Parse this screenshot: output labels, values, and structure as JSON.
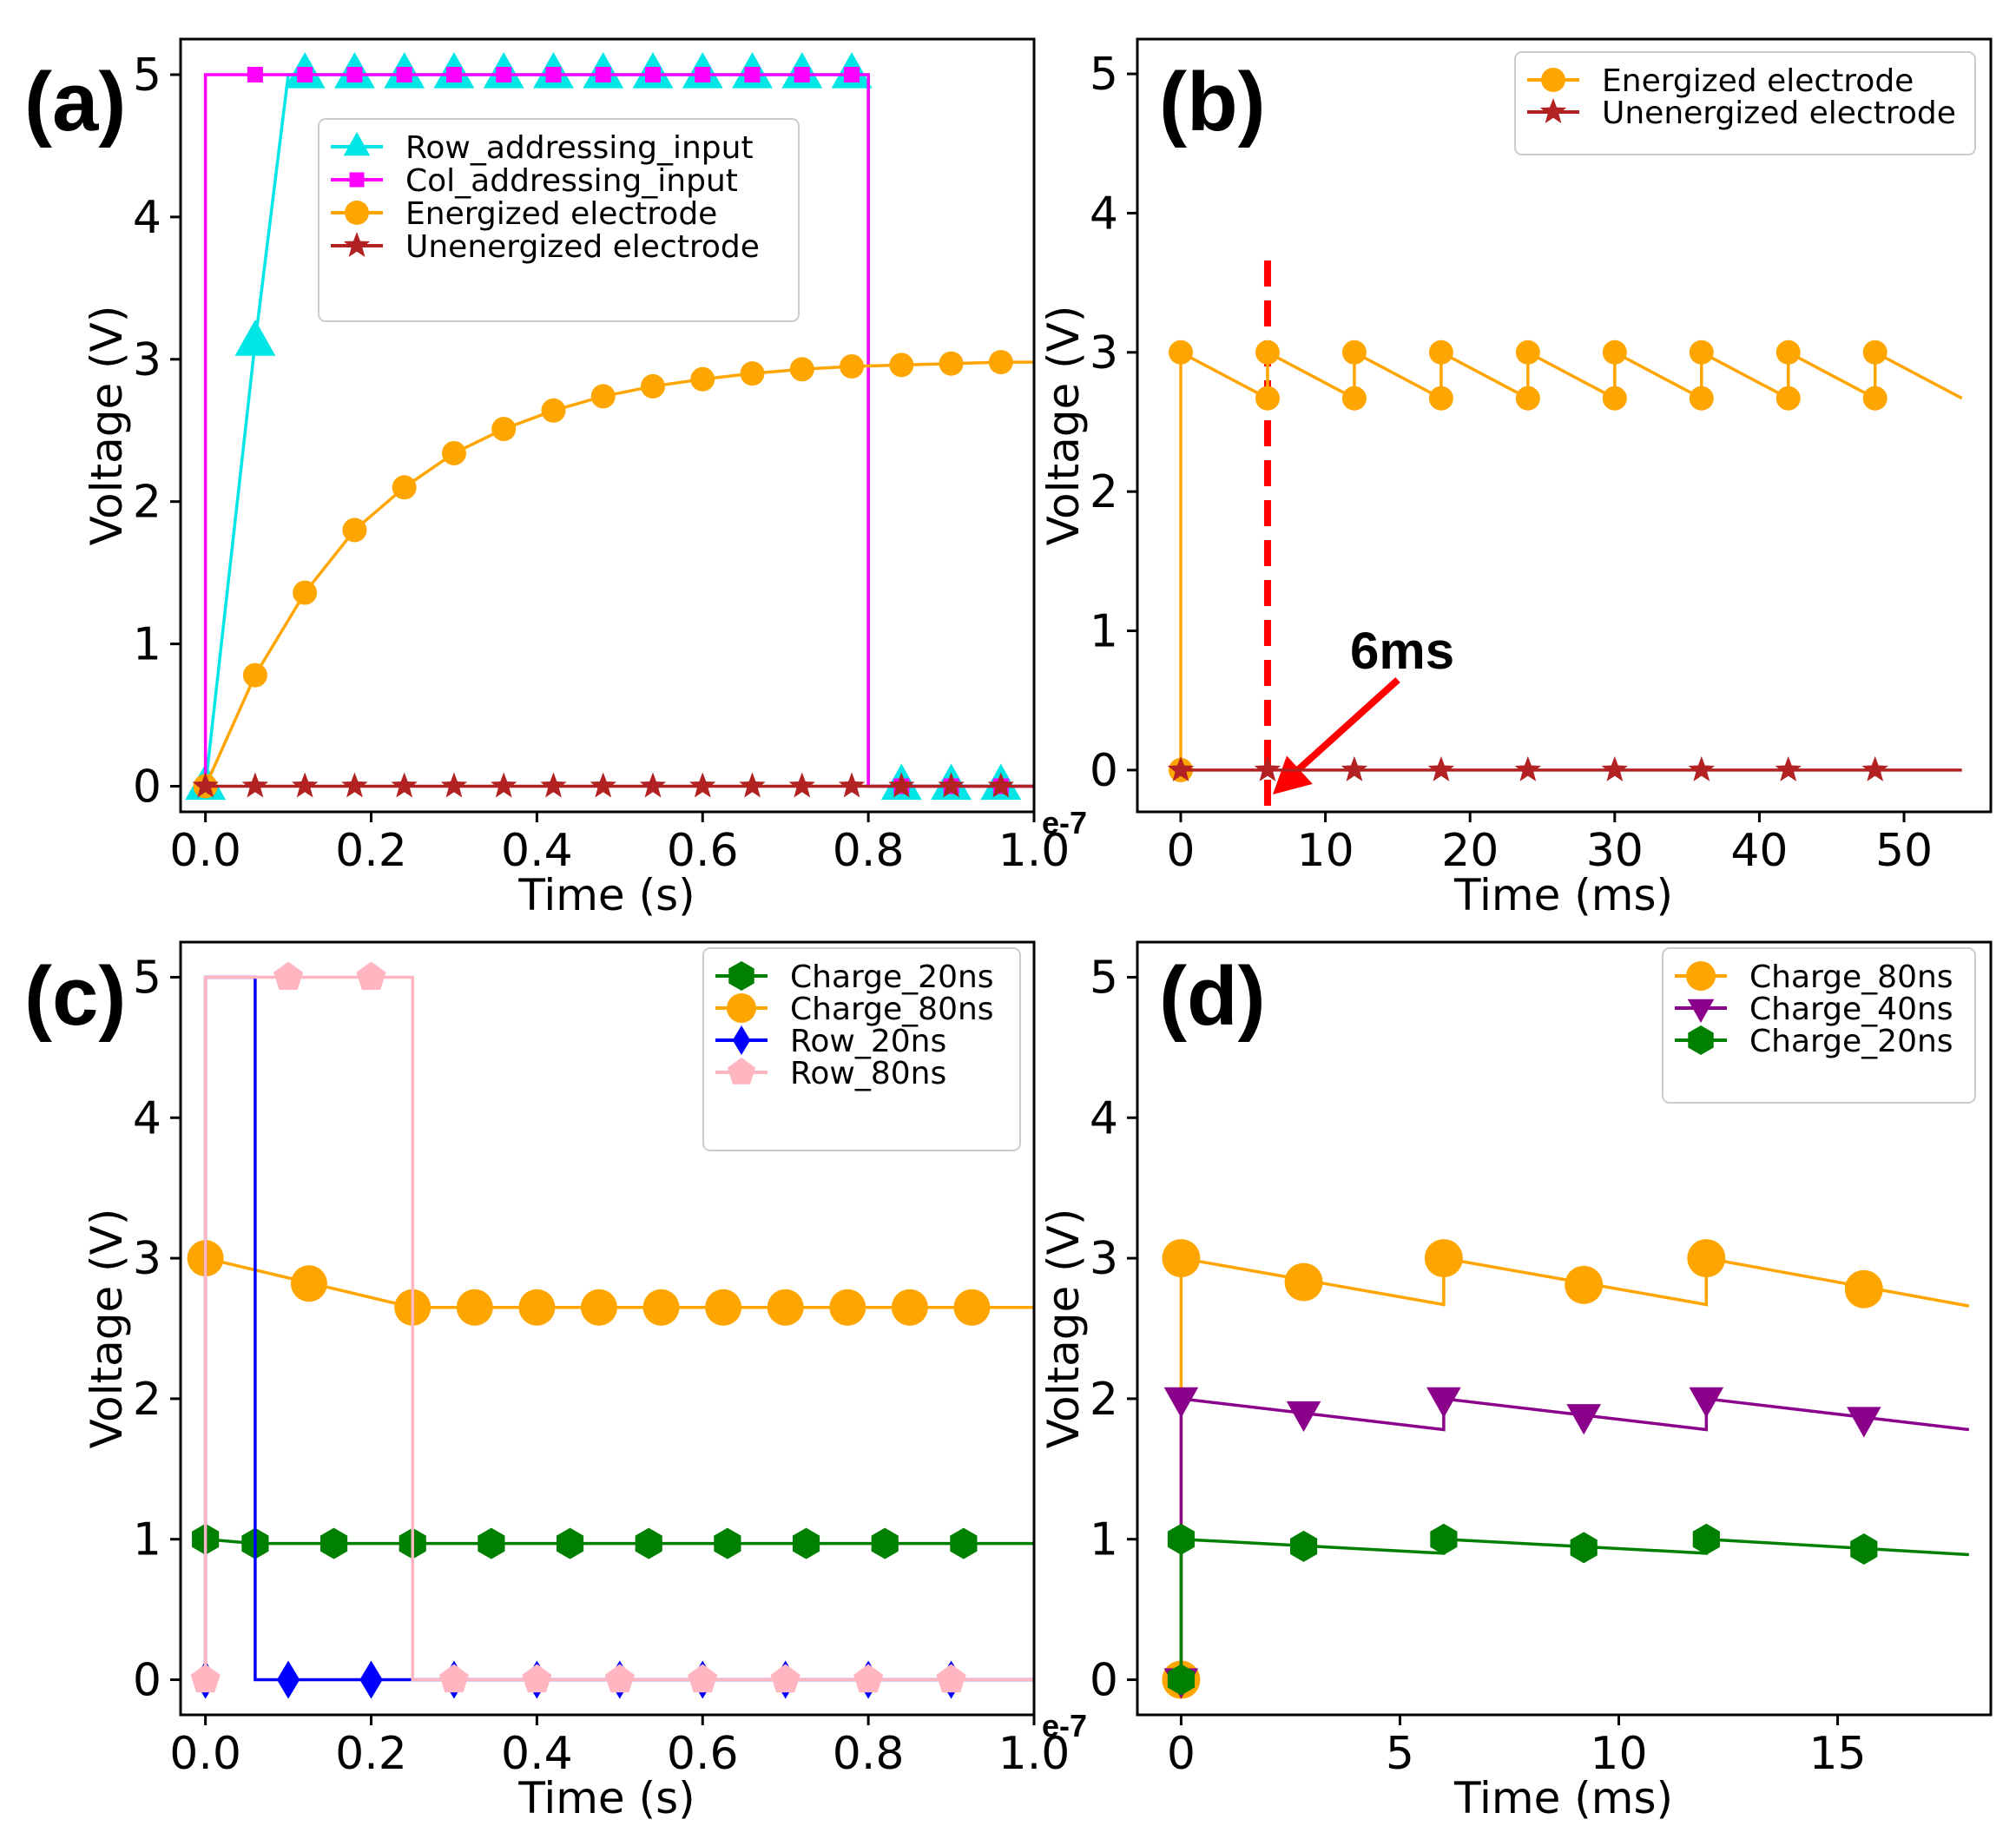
{
  "chart_data": [
    {
      "panel": "(a)",
      "type": "line",
      "xlabel": "Time (s)",
      "ylabel": "Voltage (V)",
      "x_offset_label": "e-7",
      "xlim": [
        -0.03,
        1.0
      ],
      "ylim": [
        -0.18,
        5.25
      ],
      "xticks": [
        0.0,
        0.2,
        0.4,
        0.6,
        0.8,
        1.0
      ],
      "xtick_labels": [
        "0.0",
        "0.2",
        "0.4",
        "0.6",
        "0.8",
        "1.0"
      ],
      "yticks": [
        0,
        1,
        2,
        3,
        4,
        5
      ],
      "ytick_labels": [
        "0",
        "1",
        "2",
        "3",
        "4",
        "5"
      ],
      "legend_position": "upper-center",
      "series": [
        {
          "name": "Row_addressing_input",
          "color": "#00e5e5",
          "marker": "triangle-up",
          "marker_size": 26,
          "x": [
            0.0,
            0.06,
            0.1,
            0.8,
            0.8,
            1.0
          ],
          "y": [
            0,
            3.12,
            5,
            5,
            0,
            0
          ],
          "markers_x": [
            0.0,
            0.06,
            0.12,
            0.18,
            0.24,
            0.3,
            0.36,
            0.42,
            0.48,
            0.54,
            0.6,
            0.66,
            0.72,
            0.78,
            0.84,
            0.9,
            0.96
          ],
          "markers_y": [
            0,
            3.12,
            5,
            5,
            5,
            5,
            5,
            5,
            5,
            5,
            5,
            5,
            5,
            5,
            0,
            0,
            0
          ]
        },
        {
          "name": "Col_addressing_input",
          "color": "#ff00ff",
          "marker": "square",
          "marker_size": 18,
          "x": [
            0.0,
            0.0,
            0.8,
            0.8,
            1.0
          ],
          "y": [
            0,
            5,
            5,
            0,
            0
          ],
          "markers_x": [
            0.0,
            0.06,
            0.12,
            0.18,
            0.24,
            0.3,
            0.36,
            0.42,
            0.48,
            0.54,
            0.6,
            0.66,
            0.72,
            0.78,
            0.84,
            0.9,
            0.96
          ],
          "markers_y": [
            0,
            5,
            5,
            5,
            5,
            5,
            5,
            5,
            5,
            5,
            5,
            5,
            5,
            5,
            0,
            0,
            0
          ]
        },
        {
          "name": "Energized electrode",
          "color": "#ffa500",
          "marker": "circle",
          "marker_size": 14,
          "x": [
            0.0,
            0.06,
            0.12,
            0.18,
            0.24,
            0.3,
            0.36,
            0.42,
            0.48,
            0.54,
            0.6,
            0.66,
            0.72,
            0.78,
            0.84,
            0.9,
            0.96,
            1.0
          ],
          "y": [
            0,
            0.78,
            1.36,
            1.8,
            2.1,
            2.34,
            2.51,
            2.64,
            2.74,
            2.81,
            2.86,
            2.9,
            2.93,
            2.95,
            2.96,
            2.97,
            2.98,
            2.98
          ],
          "markers_x": [
            0.0,
            0.06,
            0.12,
            0.18,
            0.24,
            0.3,
            0.36,
            0.42,
            0.48,
            0.54,
            0.6,
            0.66,
            0.72,
            0.78,
            0.84,
            0.9,
            0.96
          ],
          "markers_y": [
            0,
            0.78,
            1.36,
            1.8,
            2.1,
            2.34,
            2.51,
            2.64,
            2.74,
            2.81,
            2.86,
            2.9,
            2.93,
            2.95,
            2.96,
            2.97,
            2.98
          ]
        },
        {
          "name": "Unenergized electrode",
          "color": "#b22222",
          "marker": "star",
          "marker_size": 16,
          "x": [
            0.0,
            1.0
          ],
          "y": [
            0,
            0
          ],
          "markers_x": [
            0.0,
            0.06,
            0.12,
            0.18,
            0.24,
            0.3,
            0.36,
            0.42,
            0.48,
            0.54,
            0.6,
            0.66,
            0.72,
            0.78,
            0.84,
            0.9,
            0.96
          ],
          "markers_y": [
            0,
            0,
            0,
            0,
            0,
            0,
            0,
            0,
            0,
            0,
            0,
            0,
            0,
            0,
            0,
            0,
            0
          ]
        }
      ]
    },
    {
      "panel": "(b)",
      "type": "line",
      "xlabel": "Time (ms)",
      "ylabel": "Voltage (V)",
      "xlim": [
        -3,
        56
      ],
      "ylim": [
        -0.3,
        5.25
      ],
      "xticks": [
        0,
        10,
        20,
        30,
        40,
        50
      ],
      "xtick_labels": [
        "0",
        "10",
        "20",
        "30",
        "40",
        "50"
      ],
      "yticks": [
        0,
        1,
        2,
        3,
        4,
        5
      ],
      "ytick_labels": [
        "0",
        "1",
        "2",
        "3",
        "4",
        "5"
      ],
      "legend_position": "upper-right",
      "annotation": {
        "text": "6ms",
        "x": 6,
        "color": "#ff0000"
      },
      "series": [
        {
          "name": "Energized electrode",
          "color": "#ffa500",
          "marker": "circle",
          "marker_size": 14,
          "x": [
            0,
            0,
            6,
            6,
            12,
            12,
            18,
            18,
            24,
            24,
            30,
            30,
            36,
            36,
            42,
            42,
            48,
            48,
            54
          ],
          "y": [
            0,
            3,
            2.67,
            3,
            2.67,
            3,
            2.67,
            3,
            2.67,
            3,
            2.67,
            3,
            2.67,
            3,
            2.67,
            3,
            2.67,
            3,
            2.67
          ],
          "markers_x": [
            0,
            0,
            6,
            6,
            12,
            12,
            18,
            18,
            24,
            24,
            30,
            30,
            36,
            36,
            42,
            42,
            48,
            48
          ],
          "markers_y": [
            0,
            3,
            2.67,
            3,
            2.67,
            3,
            2.67,
            3,
            2.67,
            3,
            2.67,
            3,
            2.67,
            3,
            2.67,
            3,
            2.67,
            3
          ]
        },
        {
          "name": "Unenergized electrode",
          "color": "#b22222",
          "marker": "star",
          "marker_size": 16,
          "x": [
            0,
            54
          ],
          "y": [
            0,
            0
          ],
          "markers_x": [
            0,
            6,
            12,
            18,
            24,
            30,
            36,
            42,
            48
          ],
          "markers_y": [
            0,
            0,
            0,
            0,
            0,
            0,
            0,
            0,
            0
          ]
        }
      ]
    },
    {
      "panel": "(c)",
      "type": "line",
      "xlabel": "Time (s)",
      "ylabel": "Voltage (V)",
      "x_offset_label": "e-7",
      "xlim": [
        -0.03,
        1.0
      ],
      "ylim": [
        -0.25,
        5.25
      ],
      "xticks": [
        0.0,
        0.2,
        0.4,
        0.6,
        0.8,
        1.0
      ],
      "xtick_labels": [
        "0.0",
        "0.2",
        "0.4",
        "0.6",
        "0.8",
        "1.0"
      ],
      "yticks": [
        0,
        1,
        2,
        3,
        4,
        5
      ],
      "ytick_labels": [
        "0",
        "1",
        "2",
        "3",
        "4",
        "5"
      ],
      "legend_position": "upper-right",
      "series": [
        {
          "name": "Charge_20ns",
          "color": "#008000",
          "marker": "hexagon",
          "marker_size": 18,
          "x": [
            0.0,
            0.06,
            1.0
          ],
          "y": [
            1.0,
            0.97,
            0.97
          ],
          "markers_x": [
            0.0,
            0.06,
            0.155,
            0.25,
            0.345,
            0.44,
            0.535,
            0.63,
            0.725,
            0.82,
            0.915
          ],
          "markers_y": [
            1.0,
            0.97,
            0.97,
            0.97,
            0.97,
            0.97,
            0.97,
            0.97,
            0.97,
            0.97,
            0.97
          ]
        },
        {
          "name": "Charge_80ns",
          "color": "#ffa500",
          "marker": "circle",
          "marker_size": 21,
          "x": [
            0.0,
            0.25,
            1.0
          ],
          "y": [
            3.0,
            2.65,
            2.65
          ],
          "markers_x": [
            0.0,
            0.125,
            0.25,
            0.325,
            0.4,
            0.475,
            0.55,
            0.625,
            0.7,
            0.775,
            0.85,
            0.925
          ],
          "markers_y": [
            3.0,
            2.82,
            2.65,
            2.65,
            2.65,
            2.65,
            2.65,
            2.65,
            2.65,
            2.65,
            2.65,
            2.65
          ]
        },
        {
          "name": "Row_20ns",
          "color": "#0000ff",
          "marker": "diamond",
          "marker_size": 22,
          "x": [
            0.0,
            0.0,
            0.06,
            0.06,
            1.0
          ],
          "y": [
            0,
            5,
            5,
            0,
            0
          ],
          "markers_x": [
            0.0,
            0.1,
            0.2,
            0.3,
            0.4,
            0.5,
            0.6,
            0.7,
            0.8,
            0.9
          ],
          "markers_y": [
            0,
            0,
            0,
            0,
            0,
            0,
            0,
            0,
            0,
            0
          ]
        },
        {
          "name": "Row_80ns",
          "color": "#ffb6c1",
          "marker": "pentagon",
          "marker_size": 18,
          "x": [
            0.0,
            0.0,
            0.25,
            0.25,
            1.0
          ],
          "y": [
            0,
            5,
            5,
            0,
            0
          ],
          "markers_x": [
            0.0,
            0.1,
            0.2,
            0.3,
            0.4,
            0.5,
            0.6,
            0.7,
            0.8,
            0.9
          ],
          "markers_y": [
            0,
            5,
            5,
            0,
            0,
            0,
            0,
            0,
            0,
            0
          ]
        }
      ]
    },
    {
      "panel": "(d)",
      "type": "line",
      "xlabel": "Time (ms)",
      "ylabel": "Voltage (V)",
      "xlim": [
        -1,
        18.5
      ],
      "ylim": [
        -0.25,
        5.25
      ],
      "xticks": [
        0,
        5,
        10,
        15
      ],
      "xtick_labels": [
        "0",
        "5",
        "10",
        "15"
      ],
      "yticks": [
        0,
        1,
        2,
        3,
        4,
        5
      ],
      "ytick_labels": [
        "0",
        "1",
        "2",
        "3",
        "4",
        "5"
      ],
      "legend_position": "upper-right",
      "series": [
        {
          "name": "Charge_80ns",
          "color": "#ffa500",
          "marker": "circle",
          "marker_size": 22,
          "x": [
            0,
            0,
            6,
            6,
            12,
            12,
            18
          ],
          "y": [
            0,
            3,
            2.67,
            3,
            2.67,
            3,
            2.66
          ],
          "markers_x": [
            0,
            0,
            2.8,
            6,
            9.2,
            12,
            15.6
          ],
          "markers_y": [
            0,
            3,
            2.83,
            3,
            2.81,
            3,
            2.78
          ]
        },
        {
          "name": "Charge_40ns",
          "color": "#8b008b",
          "marker": "triangle-down",
          "marker_size": 22,
          "x": [
            0,
            0,
            6,
            6,
            12,
            12,
            18
          ],
          "y": [
            0,
            2,
            1.78,
            2,
            1.78,
            2,
            1.78
          ],
          "markers_x": [
            0,
            0,
            2.8,
            6,
            9.2,
            12,
            15.6
          ],
          "markers_y": [
            0,
            2,
            1.9,
            2,
            1.88,
            2,
            1.86
          ]
        },
        {
          "name": "Charge_20ns",
          "color": "#008000",
          "marker": "hexagon",
          "marker_size": 18,
          "x": [
            0,
            0,
            6,
            6,
            12,
            12,
            18
          ],
          "y": [
            0,
            1,
            0.9,
            1,
            0.9,
            1,
            0.89
          ],
          "markers_x": [
            0,
            0,
            2.8,
            6,
            9.2,
            12,
            15.6
          ],
          "markers_y": [
            0,
            1,
            0.95,
            1,
            0.94,
            1,
            0.93
          ]
        }
      ]
    }
  ]
}
